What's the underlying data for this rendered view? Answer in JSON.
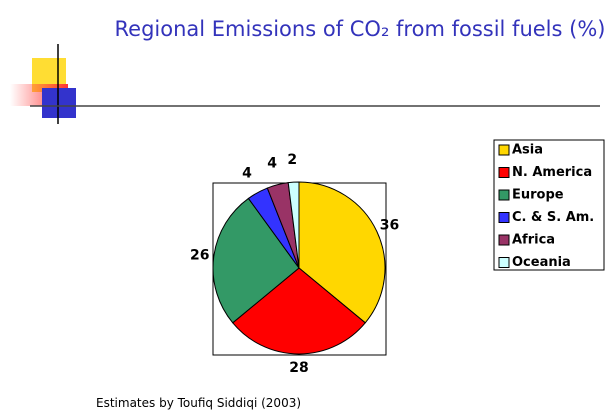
{
  "chart_data": {
    "type": "pie",
    "title": "Regional Emissions of CO₂ from fossil fuels (%)",
    "categories": [
      "Asia",
      "N. America",
      "Europe",
      "C. & S. Am.",
      "Africa",
      "Oceania"
    ],
    "values": [
      36,
      28,
      26,
      4,
      4,
      2
    ],
    "colors": [
      "#ffd700",
      "#ff0000",
      "#339966",
      "#3333ff",
      "#993366",
      "#ccffff"
    ],
    "legend": "right",
    "note": "Estimates by  Toufiq Siddiqi (2003)"
  }
}
